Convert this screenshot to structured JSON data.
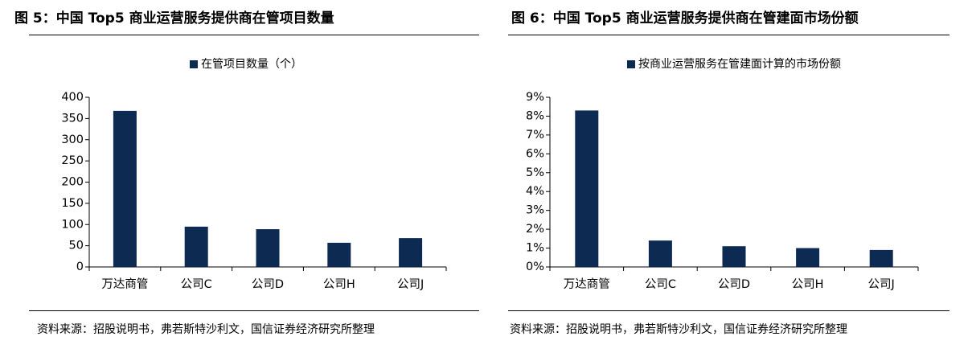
{
  "panels": [
    {
      "title": "图 5：中国 Top5 商业运营服务提供商在管项目数量",
      "source": "资料来源：招股说明书，弗若斯特沙利文，国信证券经济研究所整理"
    },
    {
      "title": "图 6：中国 Top5 商业运营服务提供商在管建面市场份额",
      "source": "资料来源：招股说明书，弗若斯特沙利文，国信证券经济研究所整理"
    }
  ],
  "chart_data": [
    {
      "type": "bar",
      "categories": [
        "万达商管",
        "公司C",
        "公司D",
        "公司H",
        "公司J"
      ],
      "series": [
        {
          "name": "在管项目数量（个）",
          "values": [
            368,
            95,
            89,
            57,
            68
          ],
          "color": "#0d2a52"
        }
      ],
      "title": "",
      "xlabel": "",
      "ylabel": "",
      "ylim": [
        0,
        400
      ],
      "yticks": [
        0,
        50,
        100,
        150,
        200,
        250,
        300,
        350,
        400
      ],
      "ytick_labels": [
        "0",
        "50",
        "100",
        "150",
        "200",
        "250",
        "300",
        "350",
        "400"
      ],
      "grid": false,
      "legend": "top-center"
    },
    {
      "type": "bar",
      "categories": [
        "万达商管",
        "公司C",
        "公司D",
        "公司H",
        "公司J"
      ],
      "series": [
        {
          "name": "按商业运营服务在管建面计算的市场份额",
          "values": [
            8.3,
            1.4,
            1.1,
            1.0,
            0.9
          ],
          "color": "#0d2a52"
        }
      ],
      "title": "",
      "xlabel": "",
      "ylabel": "",
      "ylim": [
        0,
        9
      ],
      "yticks": [
        0,
        1,
        2,
        3,
        4,
        5,
        6,
        7,
        8,
        9
      ],
      "ytick_labels": [
        "0%",
        "1%",
        "2%",
        "3%",
        "4%",
        "5%",
        "6%",
        "7%",
        "8%",
        "9%"
      ],
      "grid": false,
      "legend": "top-center"
    }
  ]
}
